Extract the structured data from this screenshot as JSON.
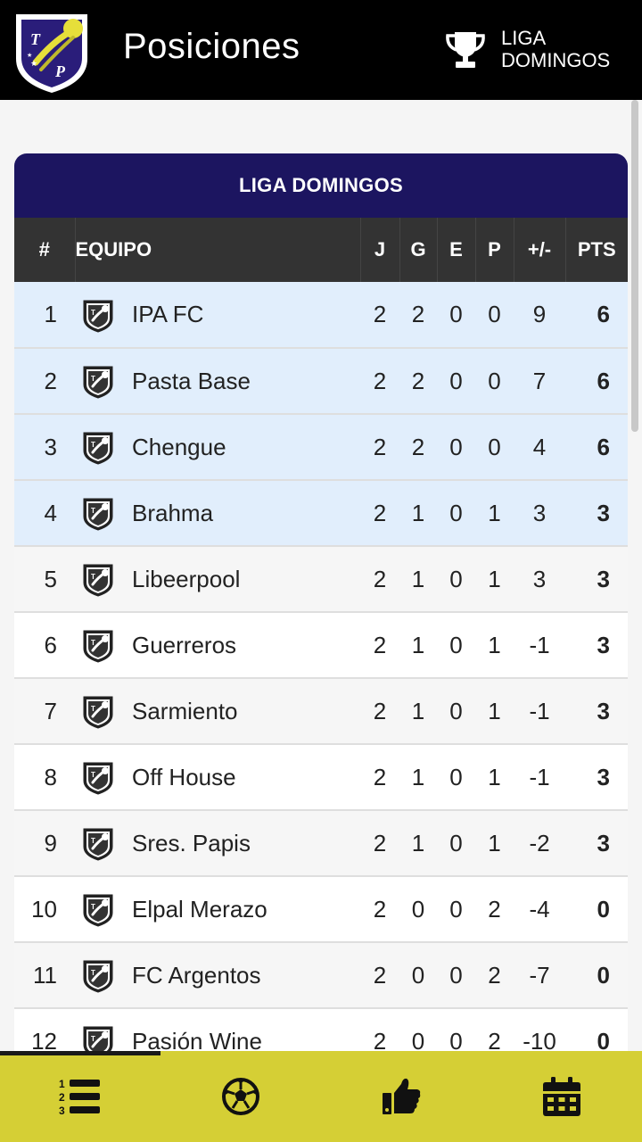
{
  "header": {
    "title": "Posiciones",
    "league_line1": "LIGA",
    "league_line2": "DOMINGOS",
    "logo_letters": [
      "T",
      "P"
    ]
  },
  "table": {
    "title": "LIGA DOMINGOS",
    "columns": [
      "#",
      "EQUIPO",
      "J",
      "G",
      "E",
      "P",
      "+/-",
      "PTS"
    ],
    "rows": [
      {
        "pos": "1",
        "team": "IPA FC",
        "j": "2",
        "g": "2",
        "e": "0",
        "p": "0",
        "dif": "9",
        "pts": "6"
      },
      {
        "pos": "2",
        "team": "Pasta Base",
        "j": "2",
        "g": "2",
        "e": "0",
        "p": "0",
        "dif": "7",
        "pts": "6"
      },
      {
        "pos": "3",
        "team": "Chengue",
        "j": "2",
        "g": "2",
        "e": "0",
        "p": "0",
        "dif": "4",
        "pts": "6"
      },
      {
        "pos": "4",
        "team": "Brahma",
        "j": "2",
        "g": "1",
        "e": "0",
        "p": "1",
        "dif": "3",
        "pts": "3"
      },
      {
        "pos": "5",
        "team": "Libeerpool",
        "j": "2",
        "g": "1",
        "e": "0",
        "p": "1",
        "dif": "3",
        "pts": "3"
      },
      {
        "pos": "6",
        "team": "Guerreros",
        "j": "2",
        "g": "1",
        "e": "0",
        "p": "1",
        "dif": "-1",
        "pts": "3"
      },
      {
        "pos": "7",
        "team": "Sarmiento",
        "j": "2",
        "g": "1",
        "e": "0",
        "p": "1",
        "dif": "-1",
        "pts": "3"
      },
      {
        "pos": "8",
        "team": "Off House",
        "j": "2",
        "g": "1",
        "e": "0",
        "p": "1",
        "dif": "-1",
        "pts": "3"
      },
      {
        "pos": "9",
        "team": "Sres. Papis",
        "j": "2",
        "g": "1",
        "e": "0",
        "p": "1",
        "dif": "-2",
        "pts": "3"
      },
      {
        "pos": "10",
        "team": "Elpal Merazo",
        "j": "2",
        "g": "0",
        "e": "0",
        "p": "2",
        "dif": "-4",
        "pts": "0"
      },
      {
        "pos": "11",
        "team": "FC Argentos",
        "j": "2",
        "g": "0",
        "e": "0",
        "p": "2",
        "dif": "-7",
        "pts": "0"
      },
      {
        "pos": "12",
        "team": "Pasión Wine",
        "j": "2",
        "g": "0",
        "e": "0",
        "p": "2",
        "dif": "-10",
        "pts": "0"
      }
    ]
  },
  "bottom_nav": {
    "items": [
      "standings-icon",
      "soccer-ball-icon",
      "thumbs-up-icon",
      "calendar-icon"
    ]
  },
  "colors": {
    "header_bg": "#000000",
    "card_head": "#1c1560",
    "highlight_row": "#e1eefc",
    "bottom_bar": "#d5cf35"
  }
}
